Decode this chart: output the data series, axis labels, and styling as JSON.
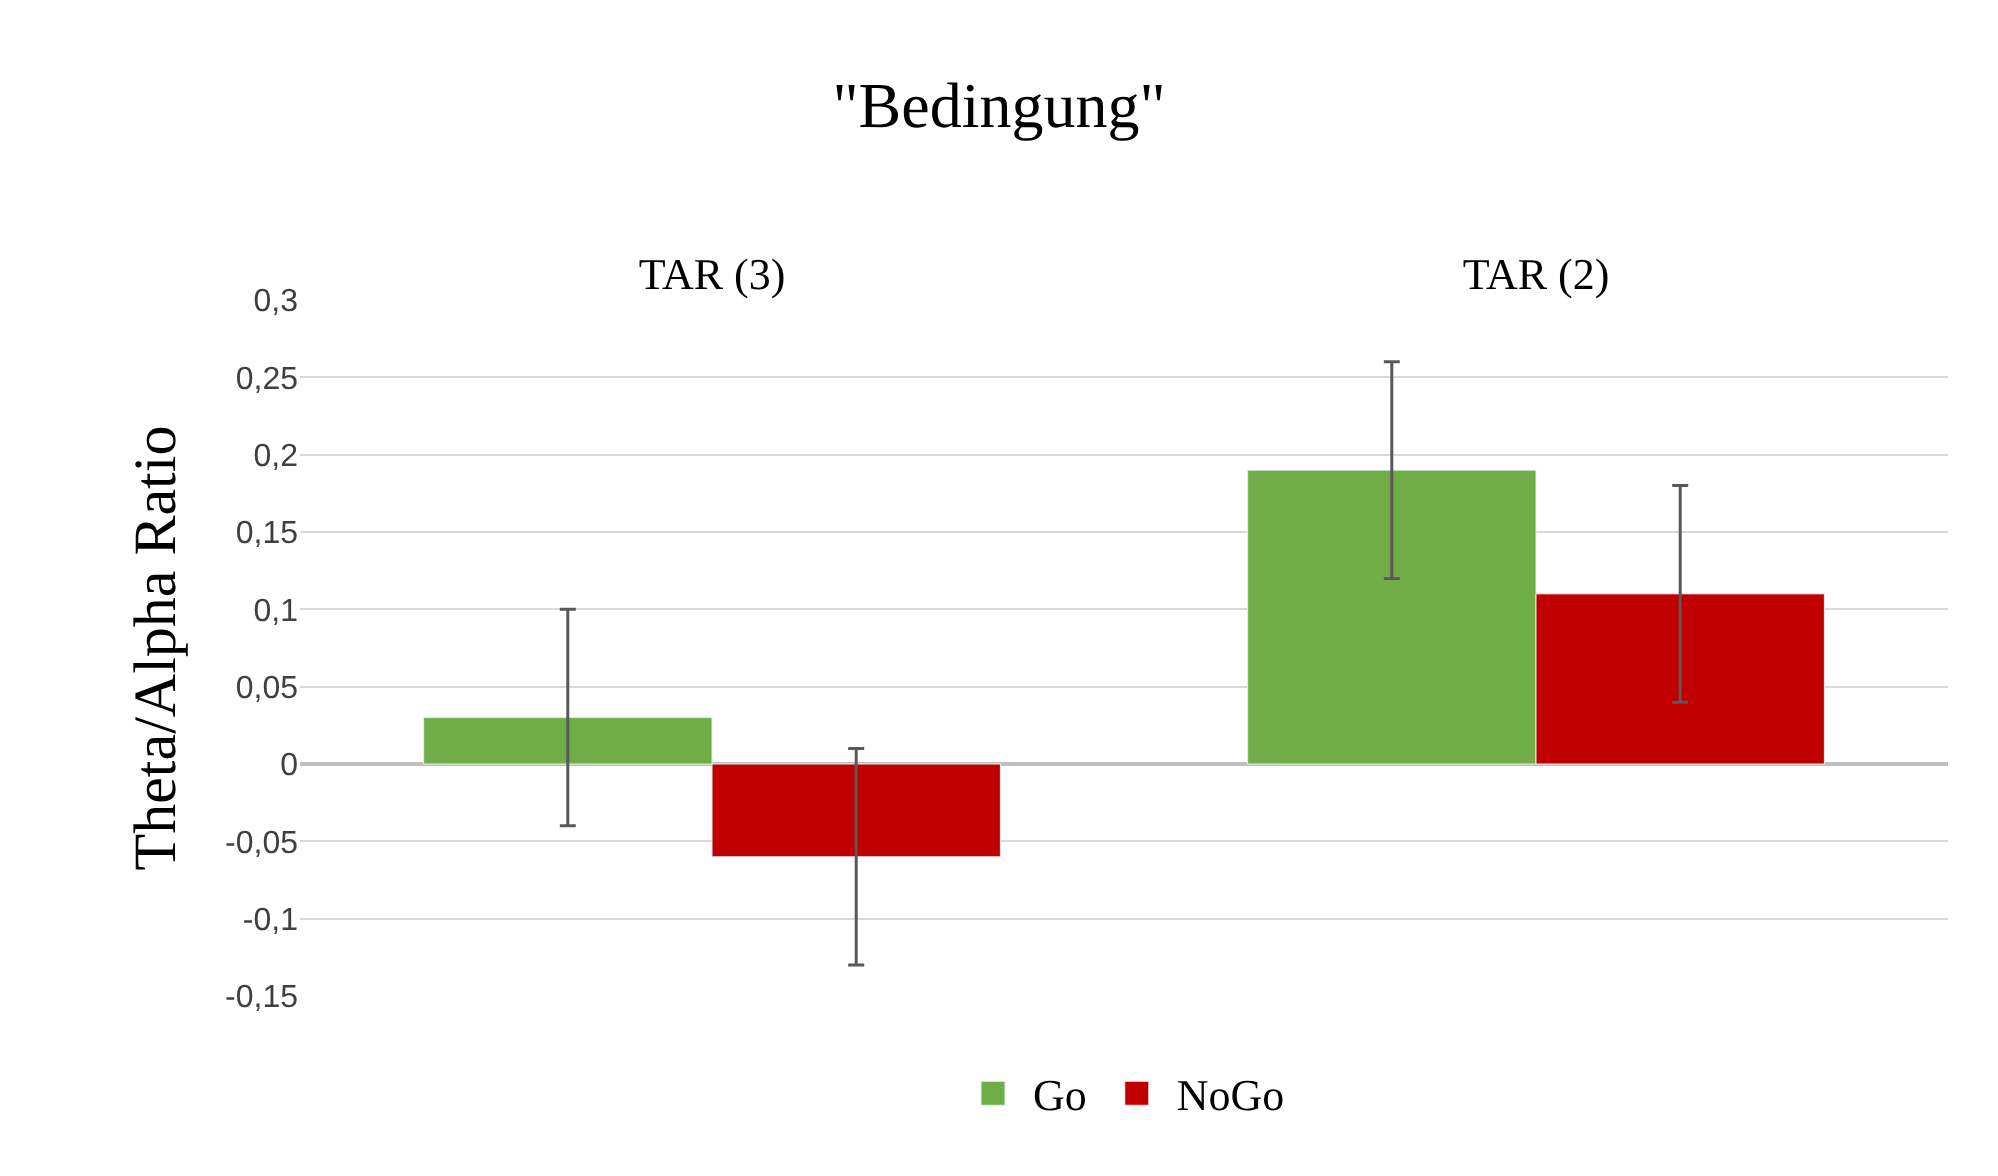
{
  "chart_data": {
    "type": "bar",
    "title": "\"Bedingung\"",
    "ylabel": "Theta/Alpha Ratio",
    "categories": [
      "TAR (3)",
      "TAR (2)"
    ],
    "series": [
      {
        "name": "Go",
        "color": "#70ad47",
        "values": [
          0.03,
          0.19
        ],
        "errors": [
          0.07,
          0.07
        ]
      },
      {
        "name": "NoGo",
        "color": "#c00000",
        "values": [
          -0.06,
          0.11
        ],
        "errors": [
          0.07,
          0.07
        ]
      }
    ],
    "ylim": [
      -0.15,
      0.3
    ],
    "yticks": [
      {
        "value": -0.15,
        "label": "-0,15"
      },
      {
        "value": -0.1,
        "label": "-0,1"
      },
      {
        "value": -0.05,
        "label": "-0,05"
      },
      0,
      {
        "value": 0.05,
        "label": "0,05"
      },
      {
        "value": 0.1,
        "label": "0,1"
      },
      {
        "value": 0.15,
        "label": "0,15"
      },
      {
        "value": 0.2,
        "label": "0,2"
      },
      {
        "value": 0.25,
        "label": "0,25"
      },
      {
        "value": 0.3,
        "label": "0,3"
      }
    ],
    "grid": "y",
    "legend": "bottom"
  }
}
